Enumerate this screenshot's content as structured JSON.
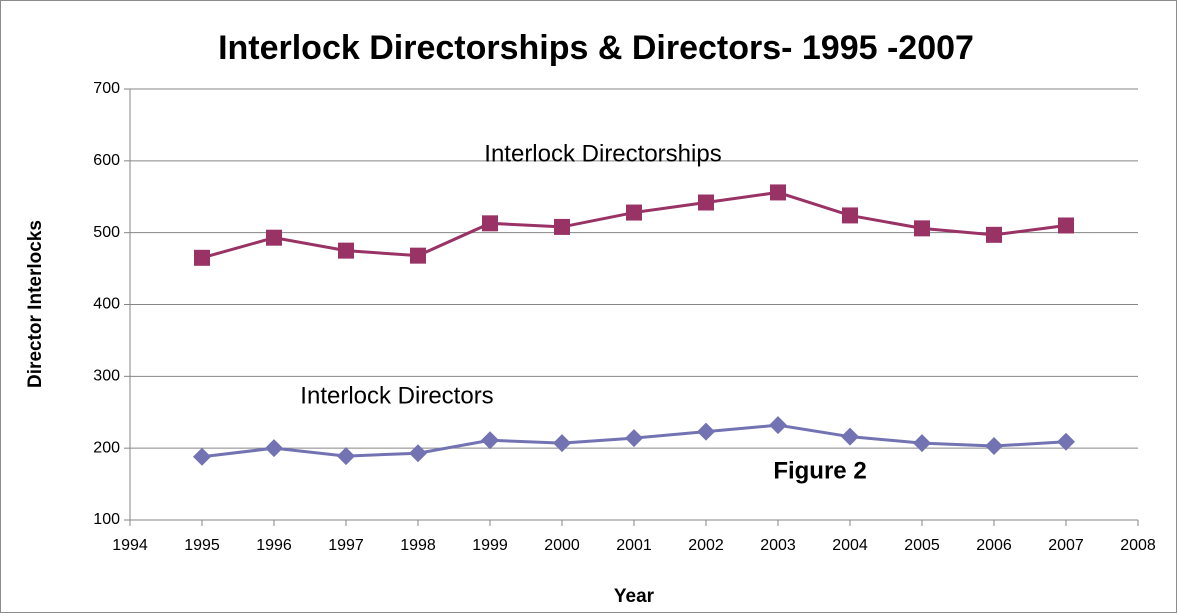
{
  "chart_data": {
    "type": "line",
    "title": "Interlock Directorships & Directors- 1995 -2007",
    "x_label": "Year",
    "y_label": "Director Interlocks",
    "annotation": "Figure 2",
    "x": [
      1995,
      1996,
      1997,
      1998,
      1999,
      2000,
      2001,
      2002,
      2003,
      2004,
      2005,
      2006,
      2007
    ],
    "series": [
      {
        "name": "Interlock Directorships",
        "color": "#993366",
        "marker": "square",
        "values": [
          465,
          493,
          475,
          468,
          513,
          508,
          528,
          542,
          556,
          524,
          506,
          497,
          510
        ]
      },
      {
        "name": "Interlock Directors",
        "color": "#7373b3",
        "marker": "diamond",
        "values": [
          188,
          200,
          189,
          193,
          211,
          207,
          214,
          223,
          232,
          216,
          207,
          203,
          209
        ]
      }
    ],
    "xlim": [
      1994,
      2008
    ],
    "xticks": [
      1994,
      1995,
      1996,
      1997,
      1998,
      1999,
      2000,
      2001,
      2002,
      2003,
      2004,
      2005,
      2006,
      2007,
      2008
    ],
    "ylim": [
      100,
      700
    ],
    "yticks": [
      100,
      200,
      300,
      400,
      500,
      600,
      700
    ],
    "grid": true
  }
}
